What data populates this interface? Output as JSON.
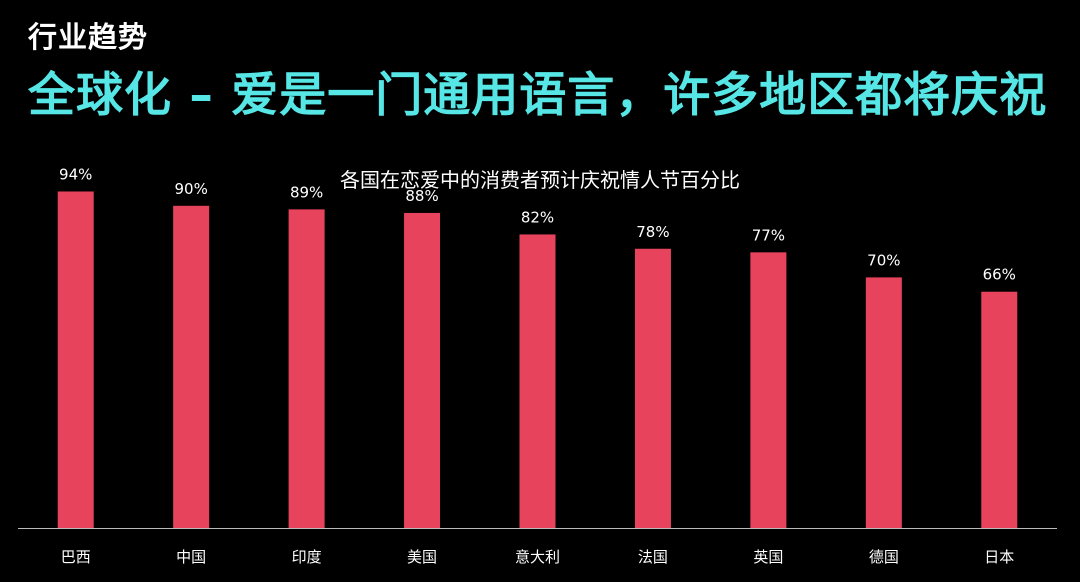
{
  "header": {
    "section_label": "行业趋势",
    "headline": "全球化 – 爱是一门通用语言，许多地区都将庆祝"
  },
  "colors": {
    "background": "#000000",
    "headline": "#57e6e6",
    "bar": "#e8435d",
    "text": "#ffffff",
    "axis": "#bbbbbb"
  },
  "chart_data": {
    "type": "bar",
    "title": "各国在恋爱中的消费者预计庆祝情人节百分比",
    "categories": [
      "巴西",
      "中国",
      "印度",
      "美国",
      "意大利",
      "法国",
      "英国",
      "德国",
      "日本"
    ],
    "values": [
      94,
      90,
      89,
      88,
      82,
      78,
      77,
      70,
      66
    ],
    "data_labels": [
      "94%",
      "90%",
      "89%",
      "88%",
      "82%",
      "78%",
      "77%",
      "70%",
      "66%"
    ],
    "ylim": [
      0,
      100
    ],
    "xlabel": "",
    "ylabel": "",
    "grid": false,
    "legend": "none"
  }
}
